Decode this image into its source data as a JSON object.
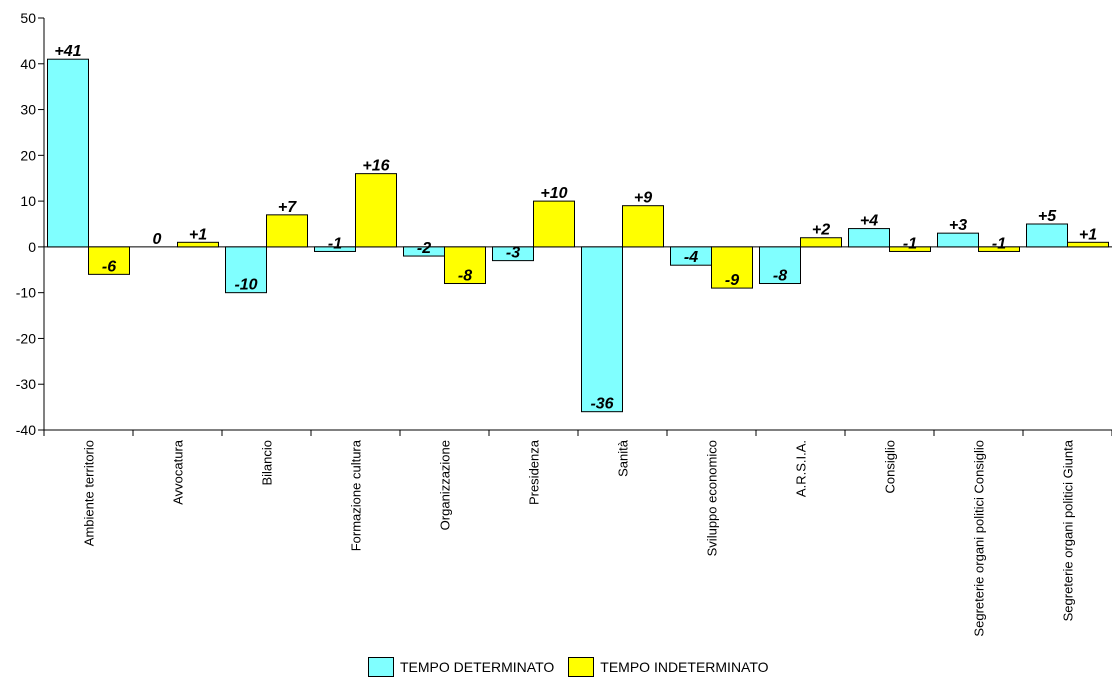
{
  "chart_data": {
    "type": "bar",
    "ylim": [
      -40,
      50
    ],
    "yticks": [
      "50",
      "40",
      "30",
      "20",
      "10",
      "0",
      "-10",
      "-20",
      "-30",
      "-40"
    ],
    "categories": [
      "Ambiente territorio",
      "Avvocatura",
      "Bilancio",
      "Formazione cultura",
      "Organizzazione",
      "Presidenza",
      "Sanità",
      "Sviluppo economico",
      "A.R.S.I.A.",
      "Consiglio",
      "Segreterie organi politici Consiglio",
      "Segreterie organi politici Giunta"
    ],
    "series": [
      {
        "name": "TEMPO DETERMINATO",
        "color": "#80FFFF",
        "values": [
          41,
          0,
          -10,
          -1,
          -2,
          -3,
          -36,
          -4,
          -8,
          4,
          3,
          5
        ],
        "labels": [
          "+41",
          "0",
          "-10",
          "-1",
          "-2",
          "-3",
          "-36",
          "-4",
          "-8",
          "+4",
          "+3",
          "+5"
        ]
      },
      {
        "name": "TEMPO INDETERMINATO",
        "color": "#FFFF00",
        "values": [
          -6,
          1,
          7,
          16,
          -8,
          10,
          9,
          -9,
          2,
          -1,
          -1,
          1
        ],
        "labels": [
          "-6",
          "+1",
          "+7",
          "+16",
          "-8",
          "+10",
          "+9",
          "-9",
          "+2",
          "-1",
          "-1",
          "+1"
        ]
      }
    ],
    "grid": false,
    "legend_position": "bottom"
  }
}
